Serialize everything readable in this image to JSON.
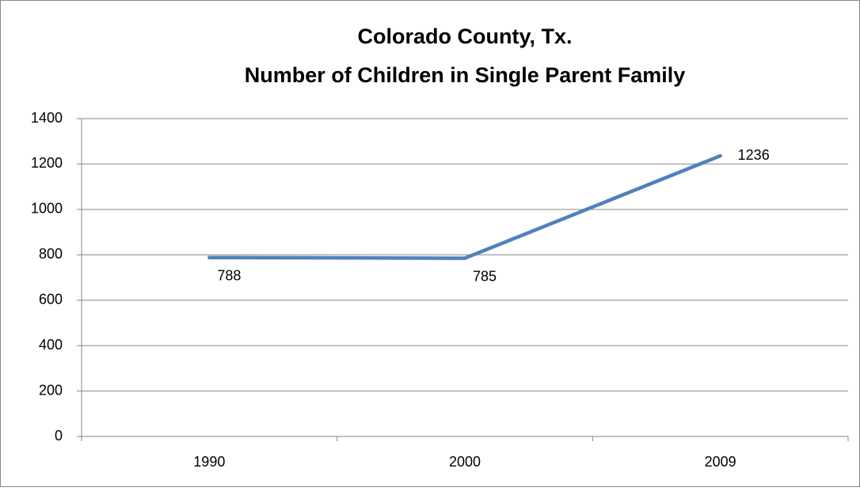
{
  "chart_data": {
    "type": "line",
    "title": "Colorado County, Tx.",
    "subtitle": "Number of Children in Single Parent Family",
    "categories": [
      "1990",
      "2000",
      "2009"
    ],
    "values": [
      788,
      785,
      1236
    ],
    "color": "#4f81bd",
    "ylim": [
      0,
      1400
    ],
    "yticks": [
      0,
      200,
      400,
      600,
      800,
      1000,
      1200,
      1400
    ],
    "grid": true
  }
}
